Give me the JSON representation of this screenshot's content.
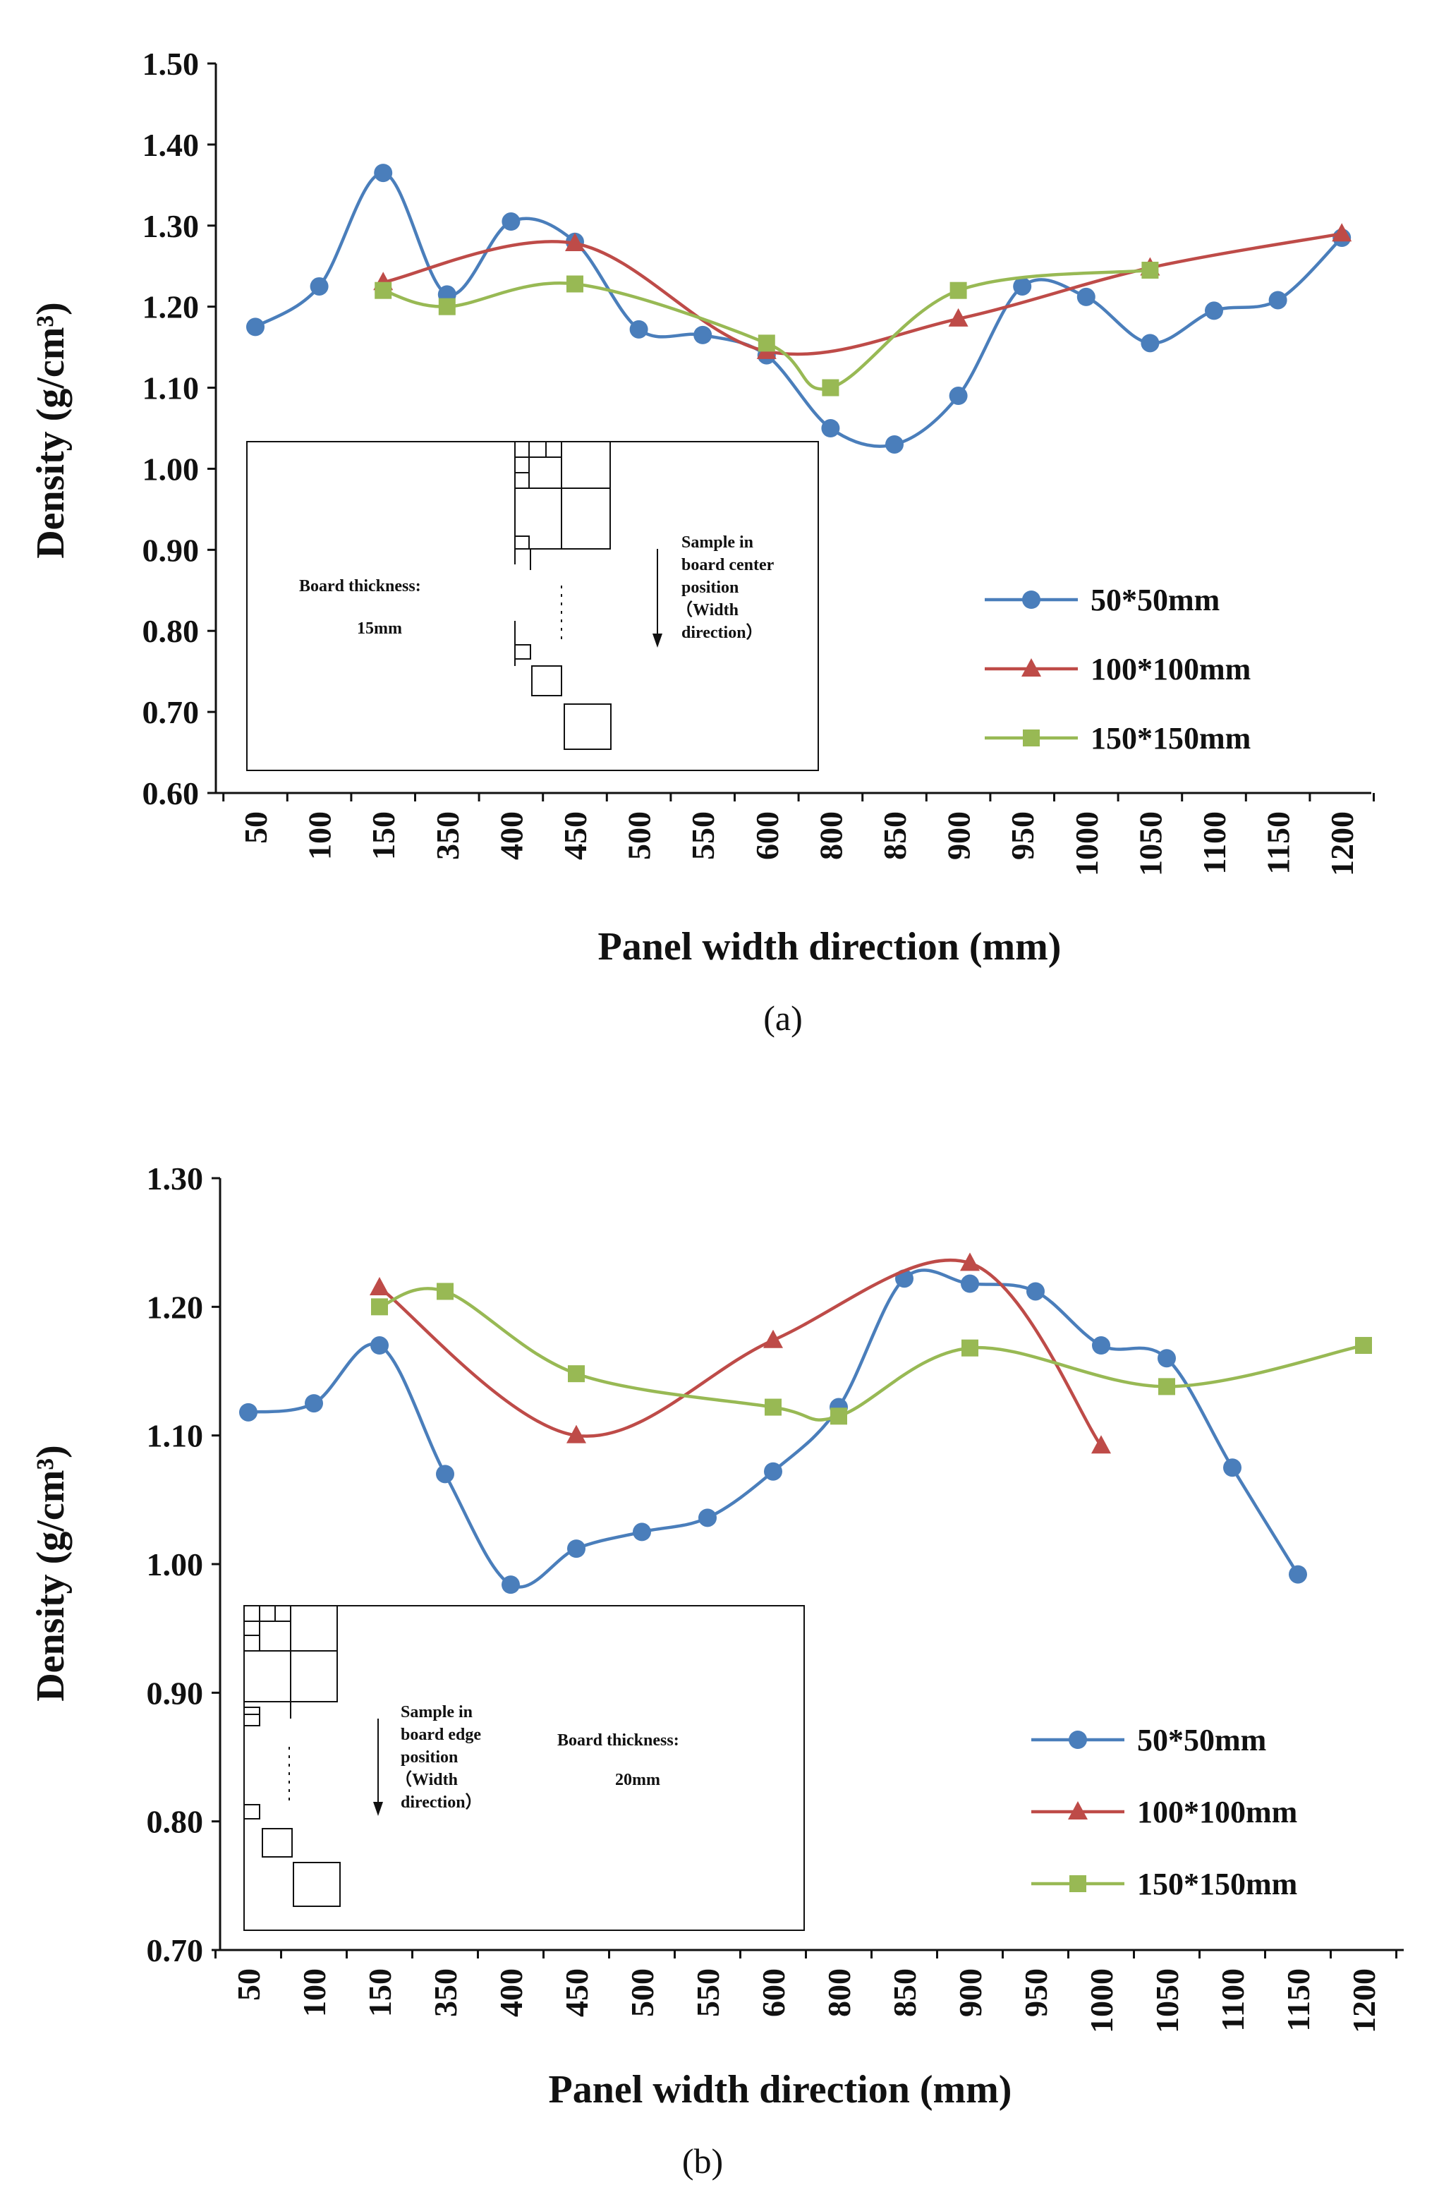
{
  "chart_data": [
    {
      "type": "line",
      "caption": "(a)",
      "xlabel": "Panel width direction (mm)",
      "ylabel": "Density (g/cm³)",
      "ylim": [
        0.6,
        1.5
      ],
      "ytick_labels": [
        "0.60",
        "0.70",
        "0.80",
        "0.90",
        "1.00",
        "1.10",
        "1.20",
        "1.30",
        "1.40",
        "1.50"
      ],
      "categories": [
        "50",
        "100",
        "150",
        "350",
        "400",
        "450",
        "500",
        "550",
        "600",
        "800",
        "850",
        "900",
        "950",
        "1000",
        "1050",
        "1100",
        "1150",
        "1200"
      ],
      "smooth": true,
      "legend_position": "right",
      "series": [
        {
          "name": "50*50mm",
          "color": "#4a7ebb",
          "marker": "circle",
          "x": [
            0,
            1,
            2,
            3,
            4,
            5,
            6,
            7,
            8,
            9,
            10,
            11,
            12,
            13,
            14,
            15,
            16,
            17
          ],
          "values": [
            1.175,
            1.225,
            1.365,
            1.215,
            1.305,
            1.28,
            1.172,
            1.165,
            1.14,
            1.05,
            1.03,
            1.09,
            1.225,
            1.212,
            1.155,
            1.195,
            1.208,
            1.285
          ]
        },
        {
          "name": "100*100mm",
          "color": "#be4b48",
          "marker": "triangle",
          "x": [
            2,
            5,
            8,
            11,
            14,
            17
          ],
          "values": [
            1.23,
            1.278,
            1.145,
            1.185,
            1.248,
            1.29
          ]
        },
        {
          "name": "150*150mm",
          "color": "#98b954",
          "marker": "square",
          "x": [
            2,
            3,
            5,
            8,
            9,
            11,
            14
          ],
          "values": [
            1.22,
            1.2,
            1.228,
            1.155,
            1.1,
            1.22,
            1.245
          ]
        }
      ],
      "inset": {
        "thickness_label": "Board thickness:",
        "thickness_value": "15mm",
        "note": [
          "Sample  in",
          "board center",
          "position",
          "（Width",
          "direction）"
        ]
      }
    },
    {
      "type": "line",
      "caption": "(b)",
      "xlabel": "Panel width direction (mm)",
      "ylabel": "Density (g/cm³)",
      "ylim": [
        0.7,
        1.3
      ],
      "ytick_labels": [
        "0.70",
        "0.80",
        "0.90",
        "1.00",
        "1.10",
        "1.20",
        "1.30"
      ],
      "categories": [
        "50",
        "100",
        "150",
        "350",
        "400",
        "450",
        "500",
        "550",
        "600",
        "800",
        "850",
        "900",
        "950",
        "1000",
        "1050",
        "1100",
        "1150",
        "1200"
      ],
      "smooth": true,
      "legend_position": "right",
      "series": [
        {
          "name": "50*50mm",
          "color": "#4a7ebb",
          "marker": "circle",
          "x": [
            0,
            1,
            2,
            3,
            4,
            5,
            6,
            7,
            8,
            9,
            10,
            11,
            12,
            13,
            14,
            15,
            16
          ],
          "values": [
            1.118,
            1.125,
            1.17,
            1.07,
            0.984,
            1.012,
            1.025,
            1.036,
            1.072,
            1.122,
            1.222,
            1.218,
            1.212,
            1.17,
            1.16,
            1.075,
            0.992
          ]
        },
        {
          "name": "100*100mm",
          "color": "#be4b48",
          "marker": "triangle",
          "x": [
            2,
            5,
            8,
            11,
            13
          ],
          "values": [
            1.215,
            1.1,
            1.174,
            1.234,
            1.092
          ]
        },
        {
          "name": "150*150mm",
          "color": "#98b954",
          "marker": "square",
          "x": [
            2,
            3,
            5,
            8,
            9,
            11,
            14,
            17
          ],
          "values": [
            1.2,
            1.212,
            1.148,
            1.122,
            1.115,
            1.168,
            1.138,
            1.17
          ]
        }
      ],
      "inset": {
        "thickness_label": "Board thickness:",
        "thickness_value": "20mm",
        "note": [
          "Sample in",
          "board edge",
          "position",
          "（Width",
          "direction）"
        ]
      }
    }
  ]
}
